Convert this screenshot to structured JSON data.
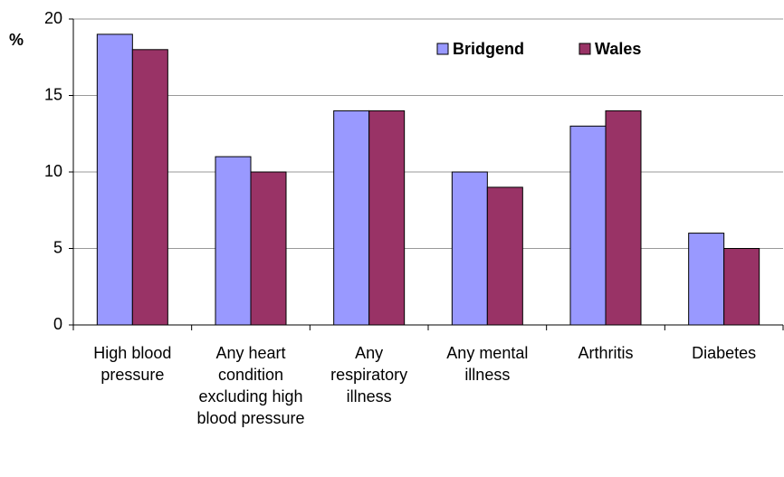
{
  "chart_data": {
    "type": "bar",
    "y_label": "%",
    "categories": [
      "High blood pressure",
      "Any heart condition excluding high blood pressure",
      "Any respiratory illness",
      "Any mental illness",
      "Arthritis",
      "Diabetes"
    ],
    "series": [
      {
        "name": "Bridgend",
        "color": "#9999ff",
        "values": [
          19,
          11,
          14,
          10,
          13,
          6
        ]
      },
      {
        "name": "Wales",
        "color": "#993366",
        "values": [
          18,
          10,
          14,
          9,
          14,
          5
        ]
      }
    ],
    "ylim": [
      0,
      20
    ],
    "yticks": [
      0,
      5,
      10,
      15,
      20
    ],
    "grid": true,
    "legend": "top"
  }
}
